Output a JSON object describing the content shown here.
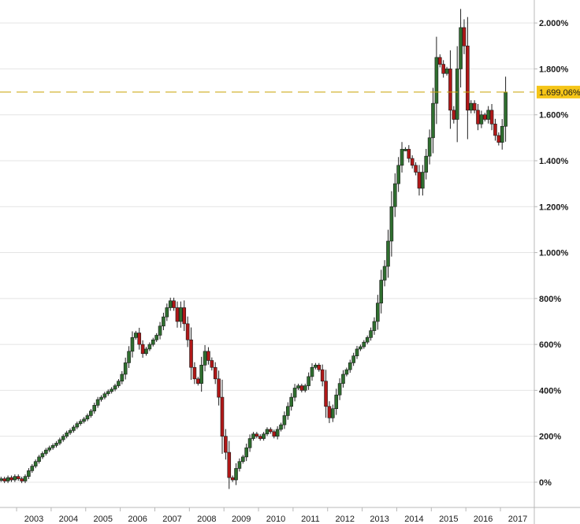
{
  "chart_data": {
    "type": "candlestick",
    "title": "",
    "xlabel": "",
    "ylabel": "",
    "y_unit": "%",
    "ylim": [
      -110,
      2100
    ],
    "xlim": [
      2002.52,
      2017.98
    ],
    "grid": true,
    "y_ticks": [
      {
        "value": 0,
        "label": "0%"
      },
      {
        "value": 200,
        "label": "200%"
      },
      {
        "value": 400,
        "label": "400%"
      },
      {
        "value": 600,
        "label": "600%"
      },
      {
        "value": 800,
        "label": "800%"
      },
      {
        "value": 1000,
        "label": "1.000%"
      },
      {
        "value": 1200,
        "label": "1.200%"
      },
      {
        "value": 1400,
        "label": "1.400%"
      },
      {
        "value": 1600,
        "label": "1.600%"
      },
      {
        "value": 1800,
        "label": "1.800%"
      },
      {
        "value": 2000,
        "label": "2.000%"
      }
    ],
    "x_ticks": [
      {
        "value": 2003.0,
        "label": "2003"
      },
      {
        "value": 2004.0,
        "label": "2004"
      },
      {
        "value": 2005.0,
        "label": "2005"
      },
      {
        "value": 2006.0,
        "label": "2006"
      },
      {
        "value": 2007.0,
        "label": "2007"
      },
      {
        "value": 2008.0,
        "label": "2008"
      },
      {
        "value": 2009.0,
        "label": "2009"
      },
      {
        "value": 2010.0,
        "label": "2010"
      },
      {
        "value": 2011.0,
        "label": "2011"
      },
      {
        "value": 2012.0,
        "label": "2012"
      },
      {
        "value": 2013.0,
        "label": "2013"
      },
      {
        "value": 2014.0,
        "label": "2014"
      },
      {
        "value": 2015.0,
        "label": "2015"
      },
      {
        "value": 2016.0,
        "label": "2016"
      },
      {
        "value": 2017.0,
        "label": "2017"
      }
    ],
    "reference_line": {
      "value": 1699.06,
      "label": "1.699,06%",
      "color": "#c9a200",
      "style": "dashed"
    },
    "colors": {
      "up": "#2f6e2f",
      "down": "#b01818",
      "wick": "#202020"
    },
    "series_close": [
      [
        2002.55,
        15
      ],
      [
        2002.65,
        5
      ],
      [
        2002.75,
        20
      ],
      [
        2002.85,
        10
      ],
      [
        2002.95,
        25
      ],
      [
        2003.05,
        15
      ],
      [
        2003.15,
        5
      ],
      [
        2003.25,
        25
      ],
      [
        2003.35,
        50
      ],
      [
        2003.45,
        70
      ],
      [
        2003.55,
        90
      ],
      [
        2003.65,
        110
      ],
      [
        2003.75,
        125
      ],
      [
        2003.85,
        140
      ],
      [
        2003.95,
        150
      ],
      [
        2004.05,
        160
      ],
      [
        2004.15,
        170
      ],
      [
        2004.25,
        185
      ],
      [
        2004.35,
        200
      ],
      [
        2004.45,
        215
      ],
      [
        2004.55,
        225
      ],
      [
        2004.65,
        240
      ],
      [
        2004.75,
        255
      ],
      [
        2004.85,
        265
      ],
      [
        2004.95,
        275
      ],
      [
        2005.05,
        290
      ],
      [
        2005.15,
        310
      ],
      [
        2005.25,
        335
      ],
      [
        2005.35,
        360
      ],
      [
        2005.45,
        370
      ],
      [
        2005.55,
        385
      ],
      [
        2005.65,
        395
      ],
      [
        2005.75,
        405
      ],
      [
        2005.85,
        420
      ],
      [
        2005.95,
        440
      ],
      [
        2006.05,
        470
      ],
      [
        2006.15,
        520
      ],
      [
        2006.25,
        570
      ],
      [
        2006.35,
        630
      ],
      [
        2006.45,
        650
      ],
      [
        2006.55,
        600
      ],
      [
        2006.65,
        560
      ],
      [
        2006.75,
        580
      ],
      [
        2006.85,
        600
      ],
      [
        2006.95,
        620
      ],
      [
        2007.05,
        640
      ],
      [
        2007.15,
        680
      ],
      [
        2007.25,
        720
      ],
      [
        2007.35,
        760
      ],
      [
        2007.45,
        790
      ],
      [
        2007.55,
        760
      ],
      [
        2007.65,
        700
      ],
      [
        2007.75,
        760
      ],
      [
        2007.85,
        690
      ],
      [
        2007.95,
        620
      ],
      [
        2008.05,
        500
      ],
      [
        2008.15,
        450
      ],
      [
        2008.25,
        430
      ],
      [
        2008.35,
        510
      ],
      [
        2008.45,
        570
      ],
      [
        2008.55,
        530
      ],
      [
        2008.65,
        500
      ],
      [
        2008.75,
        450
      ],
      [
        2008.85,
        370
      ],
      [
        2008.95,
        200
      ],
      [
        2009.05,
        130
      ],
      [
        2009.15,
        20
      ],
      [
        2009.25,
        10
      ],
      [
        2009.35,
        60
      ],
      [
        2009.45,
        90
      ],
      [
        2009.55,
        110
      ],
      [
        2009.65,
        150
      ],
      [
        2009.75,
        190
      ],
      [
        2009.85,
        210
      ],
      [
        2009.95,
        200
      ],
      [
        2010.05,
        190
      ],
      [
        2010.15,
        210
      ],
      [
        2010.25,
        230
      ],
      [
        2010.35,
        220
      ],
      [
        2010.45,
        200
      ],
      [
        2010.55,
        230
      ],
      [
        2010.65,
        250
      ],
      [
        2010.75,
        290
      ],
      [
        2010.85,
        330
      ],
      [
        2010.95,
        370
      ],
      [
        2011.05,
        410
      ],
      [
        2011.15,
        420
      ],
      [
        2011.25,
        400
      ],
      [
        2011.35,
        420
      ],
      [
        2011.45,
        460
      ],
      [
        2011.55,
        500
      ],
      [
        2011.65,
        510
      ],
      [
        2011.75,
        490
      ],
      [
        2011.85,
        440
      ],
      [
        2011.95,
        330
      ],
      [
        2012.05,
        280
      ],
      [
        2012.15,
        320
      ],
      [
        2012.25,
        380
      ],
      [
        2012.35,
        430
      ],
      [
        2012.45,
        470
      ],
      [
        2012.55,
        490
      ],
      [
        2012.65,
        520
      ],
      [
        2012.75,
        550
      ],
      [
        2012.85,
        580
      ],
      [
        2012.95,
        590
      ],
      [
        2013.05,
        610
      ],
      [
        2013.15,
        630
      ],
      [
        2013.25,
        660
      ],
      [
        2013.35,
        700
      ],
      [
        2013.45,
        780
      ],
      [
        2013.55,
        880
      ],
      [
        2013.65,
        940
      ],
      [
        2013.75,
        1050
      ],
      [
        2013.85,
        1200
      ],
      [
        2013.95,
        1300
      ],
      [
        2014.05,
        1380
      ],
      [
        2014.15,
        1450
      ],
      [
        2014.25,
        1450
      ],
      [
        2014.35,
        1410
      ],
      [
        2014.45,
        1380
      ],
      [
        2014.55,
        1350
      ],
      [
        2014.65,
        1280
      ],
      [
        2014.75,
        1350
      ],
      [
        2014.85,
        1420
      ],
      [
        2014.95,
        1500
      ],
      [
        2015.05,
        1650
      ],
      [
        2015.15,
        1850
      ],
      [
        2015.25,
        1820
      ],
      [
        2015.35,
        1780
      ],
      [
        2015.45,
        1800
      ],
      [
        2015.55,
        1620
      ],
      [
        2015.65,
        1580
      ],
      [
        2015.75,
        1800
      ],
      [
        2015.85,
        1980
      ],
      [
        2015.95,
        1900
      ],
      [
        2016.05,
        1620
      ],
      [
        2016.15,
        1650
      ],
      [
        2016.25,
        1620
      ],
      [
        2016.35,
        1560
      ],
      [
        2016.45,
        1600
      ],
      [
        2016.55,
        1580
      ],
      [
        2016.65,
        1620
      ],
      [
        2016.75,
        1560
      ],
      [
        2016.85,
        1510
      ],
      [
        2016.95,
        1480
      ],
      [
        2017.05,
        1550
      ],
      [
        2017.15,
        1699.06
      ]
    ]
  }
}
